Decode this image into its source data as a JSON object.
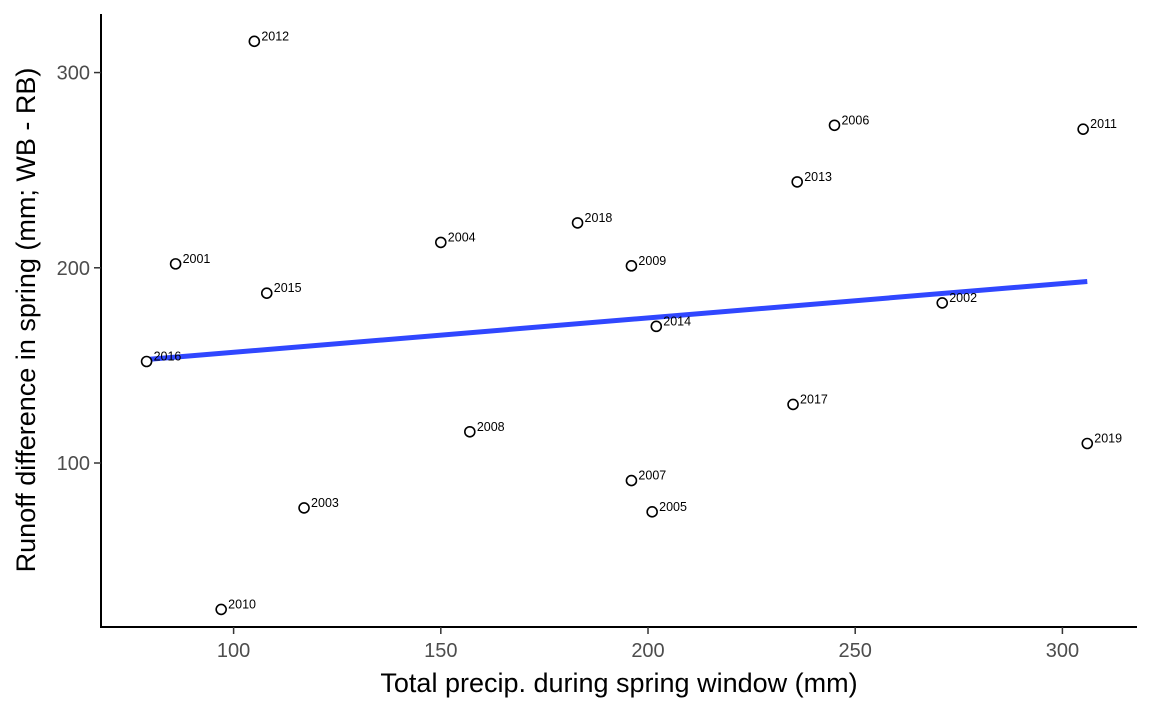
{
  "chart_data": {
    "type": "scatter",
    "title": "",
    "xlabel": "Total precip. during spring window (mm)",
    "ylabel": "Runoff difference in spring (mm; WB - RB)",
    "xlim": [
      68,
      318
    ],
    "ylim": [
      16,
      330
    ],
    "x_ticks": [
      100,
      150,
      200,
      250,
      300
    ],
    "y_ticks": [
      100,
      200,
      300
    ],
    "grid": false,
    "legend": "none",
    "colors": {
      "points_fill": "#ffffff",
      "points_stroke": "#000000",
      "trend": "#3047ff",
      "axis": "#000000",
      "tick_text": "#4d4d4d"
    },
    "points": [
      {
        "label": "2001",
        "x": 86,
        "y": 202
      },
      {
        "label": "2002",
        "x": 271,
        "y": 182
      },
      {
        "label": "2003",
        "x": 117,
        "y": 77
      },
      {
        "label": "2004",
        "x": 150,
        "y": 213
      },
      {
        "label": "2005",
        "x": 201,
        "y": 75
      },
      {
        "label": "2006",
        "x": 245,
        "y": 273
      },
      {
        "label": "2007",
        "x": 196,
        "y": 91
      },
      {
        "label": "2008",
        "x": 157,
        "y": 116
      },
      {
        "label": "2009",
        "x": 196,
        "y": 201
      },
      {
        "label": "2010",
        "x": 97,
        "y": 25
      },
      {
        "label": "2011",
        "x": 305,
        "y": 271
      },
      {
        "label": "2012",
        "x": 105,
        "y": 316
      },
      {
        "label": "2013",
        "x": 236,
        "y": 244
      },
      {
        "label": "2014",
        "x": 202,
        "y": 170
      },
      {
        "label": "2015",
        "x": 108,
        "y": 187
      },
      {
        "label": "2016",
        "x": 79,
        "y": 152
      },
      {
        "label": "2017",
        "x": 235,
        "y": 130
      },
      {
        "label": "2018",
        "x": 183,
        "y": 223
      },
      {
        "label": "2019",
        "x": 306,
        "y": 110
      }
    ],
    "trend_line": {
      "x": [
        79,
        306
      ],
      "y": [
        153,
        193
      ]
    }
  }
}
